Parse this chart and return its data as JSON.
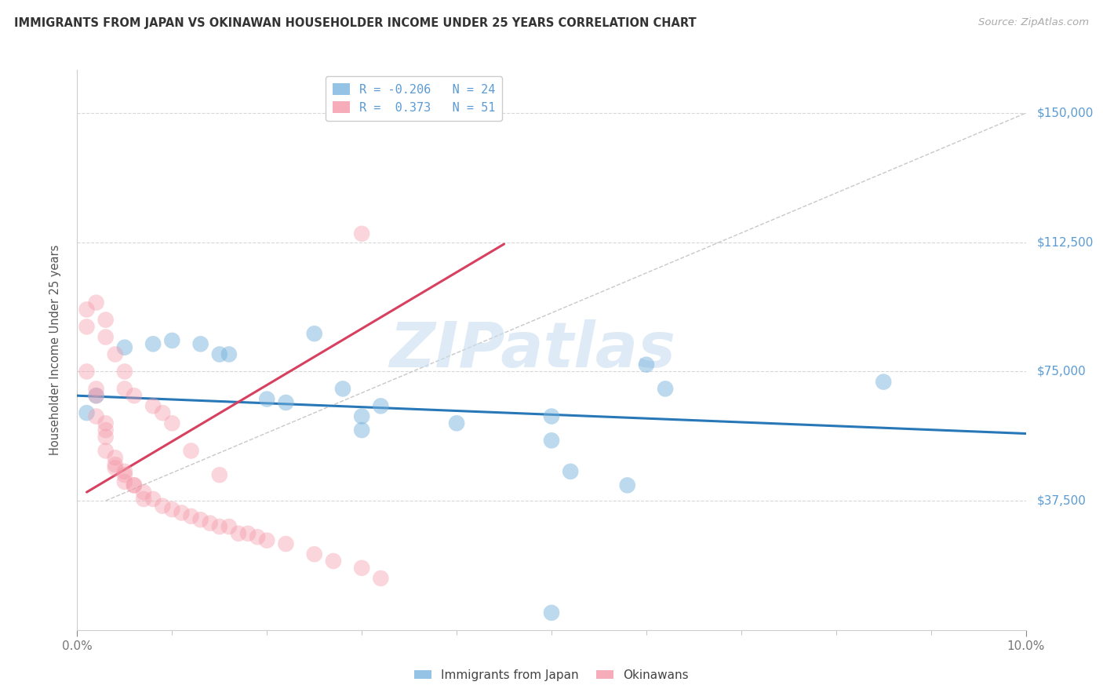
{
  "title": "IMMIGRANTS FROM JAPAN VS OKINAWAN HOUSEHOLDER INCOME UNDER 25 YEARS CORRELATION CHART",
  "source": "Source: ZipAtlas.com",
  "ylabel": "Householder Income Under 25 years",
  "xlim": [
    0.0,
    0.1
  ],
  "ylim": [
    0,
    162500
  ],
  "yticks": [
    37500,
    75000,
    112500,
    150000
  ],
  "ytick_labels": [
    "$37,500",
    "$75,000",
    "$112,500",
    "$150,000"
  ],
  "xtick_labels": [
    "0.0%",
    "10.0%"
  ],
  "legend_label_bottom": [
    "Immigrants from Japan",
    "Okinawans"
  ],
  "legend_r_blue": "R = -0.206   N = 24",
  "legend_r_pink": "R =  0.373   N = 51",
  "blue_scatter_x": [
    0.001,
    0.002,
    0.005,
    0.008,
    0.01,
    0.013,
    0.015,
    0.016,
    0.02,
    0.022,
    0.025,
    0.028,
    0.03,
    0.032,
    0.04,
    0.05,
    0.052,
    0.058,
    0.06,
    0.062,
    0.085,
    0.05,
    0.03,
    0.05
  ],
  "blue_scatter_y": [
    63000,
    68000,
    82000,
    83000,
    84000,
    83000,
    80000,
    80000,
    67000,
    66000,
    86000,
    70000,
    62000,
    65000,
    60000,
    62000,
    46000,
    42000,
    77000,
    70000,
    72000,
    55000,
    58000,
    5000
  ],
  "pink_scatter_x": [
    0.001,
    0.001,
    0.001,
    0.002,
    0.002,
    0.002,
    0.003,
    0.003,
    0.003,
    0.003,
    0.004,
    0.004,
    0.004,
    0.005,
    0.005,
    0.005,
    0.006,
    0.006,
    0.007,
    0.007,
    0.008,
    0.009,
    0.01,
    0.011,
    0.012,
    0.013,
    0.014,
    0.015,
    0.016,
    0.017,
    0.018,
    0.019,
    0.02,
    0.022,
    0.025,
    0.027,
    0.03,
    0.032,
    0.03,
    0.002,
    0.003,
    0.003,
    0.004,
    0.005,
    0.005,
    0.006,
    0.008,
    0.009,
    0.01,
    0.012,
    0.015
  ],
  "pink_scatter_y": [
    93000,
    88000,
    75000,
    70000,
    68000,
    62000,
    60000,
    58000,
    56000,
    52000,
    50000,
    48000,
    47000,
    46000,
    45000,
    43000,
    42000,
    42000,
    40000,
    38000,
    38000,
    36000,
    35000,
    34000,
    33000,
    32000,
    31000,
    30000,
    30000,
    28000,
    28000,
    27000,
    26000,
    25000,
    22000,
    20000,
    18000,
    15000,
    115000,
    95000,
    90000,
    85000,
    80000,
    75000,
    70000,
    68000,
    65000,
    63000,
    60000,
    52000,
    45000
  ],
  "blue_line_x": [
    0.0,
    0.1
  ],
  "blue_line_y": [
    68000,
    57000
  ],
  "pink_line_x": [
    0.001,
    0.045
  ],
  "pink_line_y": [
    40000,
    112000
  ],
  "diag_line_x": [
    0.003,
    0.1
  ],
  "diag_line_y": [
    37500,
    150000
  ],
  "watermark_text": "ZIPatlas",
  "blue_dot_color": "#7ab5df",
  "pink_dot_color": "#f598a8",
  "blue_line_color": "#2878b8",
  "pink_line_color": "#d84060",
  "diag_color": "#c8c8c8",
  "grid_color": "#d8d8d8",
  "title_color": "#333333",
  "right_label_color": "#5b9bd5",
  "source_color": "#aaaaaa",
  "watermark_color": "#c8dff0"
}
